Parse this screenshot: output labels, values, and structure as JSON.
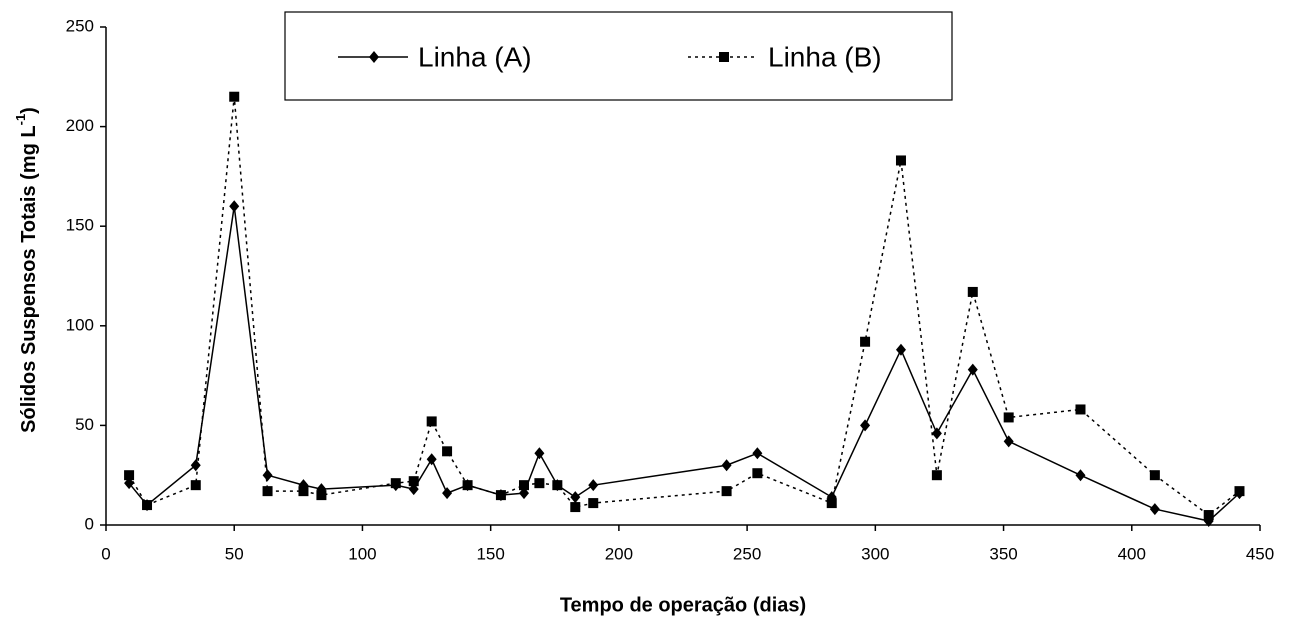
{
  "chart_data": {
    "type": "line",
    "x_label": "Tempo de operação (dias)",
    "y_label": "Sólidos Suspensos Totais (mg L",
    "y_label_sup": "-1",
    "y_label_end": ")",
    "x": [
      9,
      16,
      35,
      50,
      63,
      77,
      84,
      113,
      120,
      127,
      133,
      141,
      154,
      163,
      169,
      176,
      183,
      190,
      242,
      254,
      283,
      296,
      310,
      324,
      338,
      352,
      380,
      409,
      430,
      442
    ],
    "series": [
      {
        "name": "Linha (A)",
        "color": "#000000",
        "dash": "solid",
        "marker": "diamond",
        "values": [
          21,
          10,
          30,
          160,
          25,
          20,
          18,
          20,
          18,
          33,
          16,
          20,
          15,
          16,
          36,
          20,
          14,
          20,
          30,
          36,
          14,
          50,
          88,
          46,
          78,
          42,
          25,
          8,
          2,
          16
        ]
      },
      {
        "name": "Linha (B)",
        "color": "#000000",
        "dash": "dotted",
        "marker": "square",
        "values": [
          25,
          10,
          20,
          215,
          17,
          17,
          15,
          21,
          22,
          52,
          37,
          20,
          15,
          20,
          21,
          20,
          9,
          11,
          17,
          26,
          11,
          92,
          183,
          25,
          117,
          54,
          58,
          25,
          5,
          17
        ]
      }
    ],
    "xlim": [
      0,
      450
    ],
    "xticks": [
      0,
      50,
      100,
      150,
      200,
      250,
      300,
      350,
      400,
      450
    ],
    "ylim": [
      0,
      250
    ],
    "yticks": [
      0,
      50,
      100,
      150,
      200,
      250
    ],
    "grid": false
  }
}
